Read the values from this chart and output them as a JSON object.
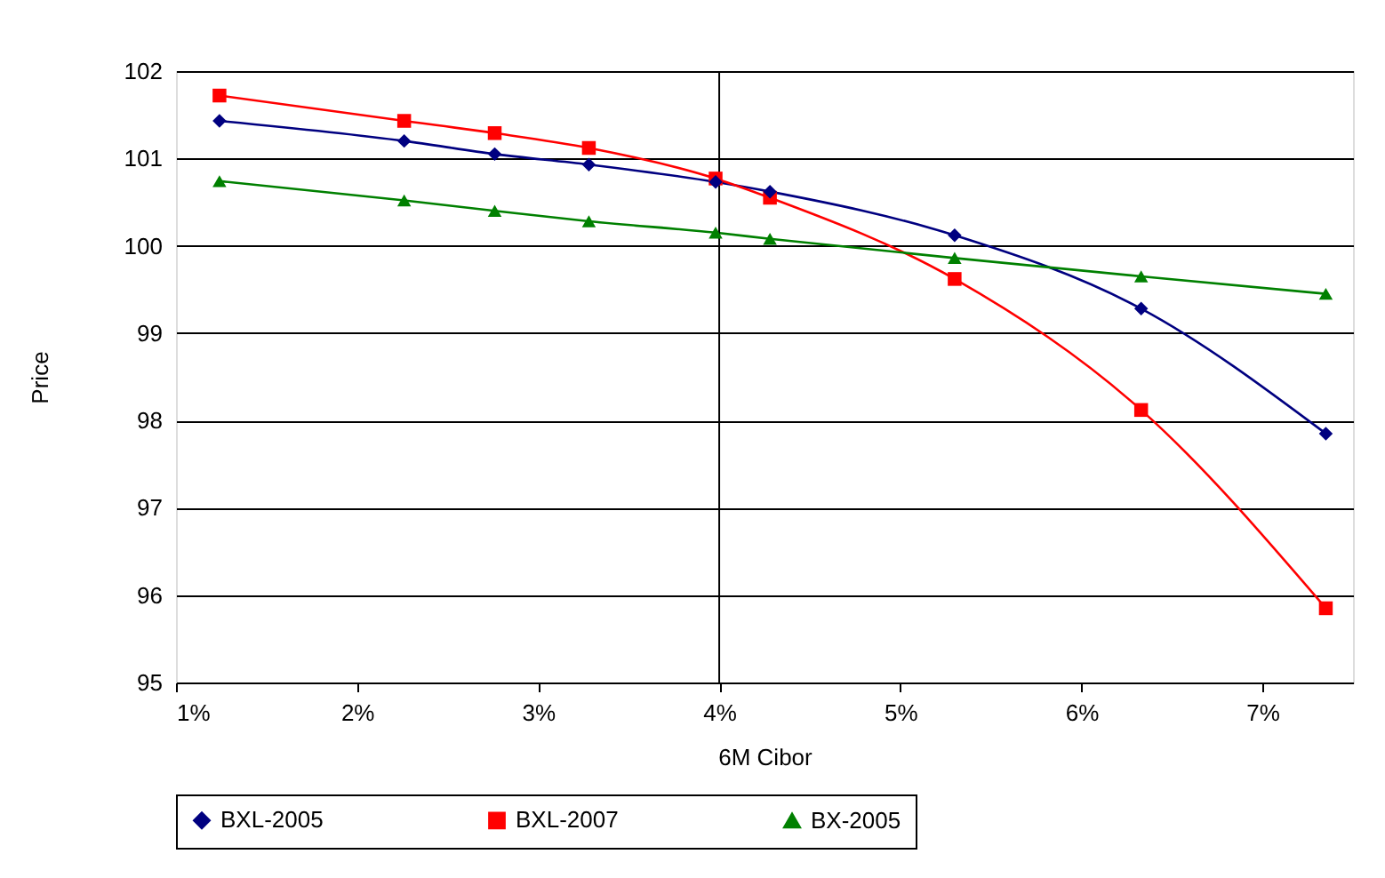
{
  "chart_data": {
    "type": "line",
    "xlabel": "6M Cibor",
    "ylabel": "Price",
    "x": [
      1.24,
      2.26,
      2.76,
      3.28,
      3.98,
      4.28,
      5.3,
      6.33,
      7.35
    ],
    "series": [
      {
        "name": "BXL-2005",
        "color": "#000080",
        "marker": "diamond",
        "values": [
          101.43,
          101.2,
          101.05,
          100.93,
          100.73,
          100.62,
          100.12,
          99.28,
          97.85
        ]
      },
      {
        "name": "BXL-2007",
        "color": "#ff0000",
        "marker": "square",
        "values": [
          101.72,
          101.43,
          101.29,
          101.12,
          100.77,
          100.55,
          99.62,
          98.12,
          95.85
        ]
      },
      {
        "name": "BX-2005",
        "color": "#008000",
        "marker": "triangle",
        "values": [
          100.74,
          100.52,
          100.4,
          100.28,
          100.15,
          100.08,
          99.86,
          99.65,
          99.45
        ]
      }
    ],
    "xlim": [
      1,
      7.5
    ],
    "xticks": [
      {
        "value": 1,
        "label": "1%"
      },
      {
        "value": 2,
        "label": "2%"
      },
      {
        "value": 3,
        "label": "3%"
      },
      {
        "value": 4,
        "label": "4%"
      },
      {
        "value": 5,
        "label": "5%"
      },
      {
        "value": 6,
        "label": "6%"
      },
      {
        "value": 7,
        "label": "7%"
      }
    ],
    "ylim": [
      95,
      102
    ],
    "yticks": [
      95,
      96,
      97,
      98,
      99,
      100,
      101,
      102
    ],
    "ref_lines": [
      {
        "axis": "x",
        "value": 4,
        "color": "#000000"
      }
    ],
    "grid": "y",
    "legend": "bottom",
    "line_style": "solid"
  }
}
